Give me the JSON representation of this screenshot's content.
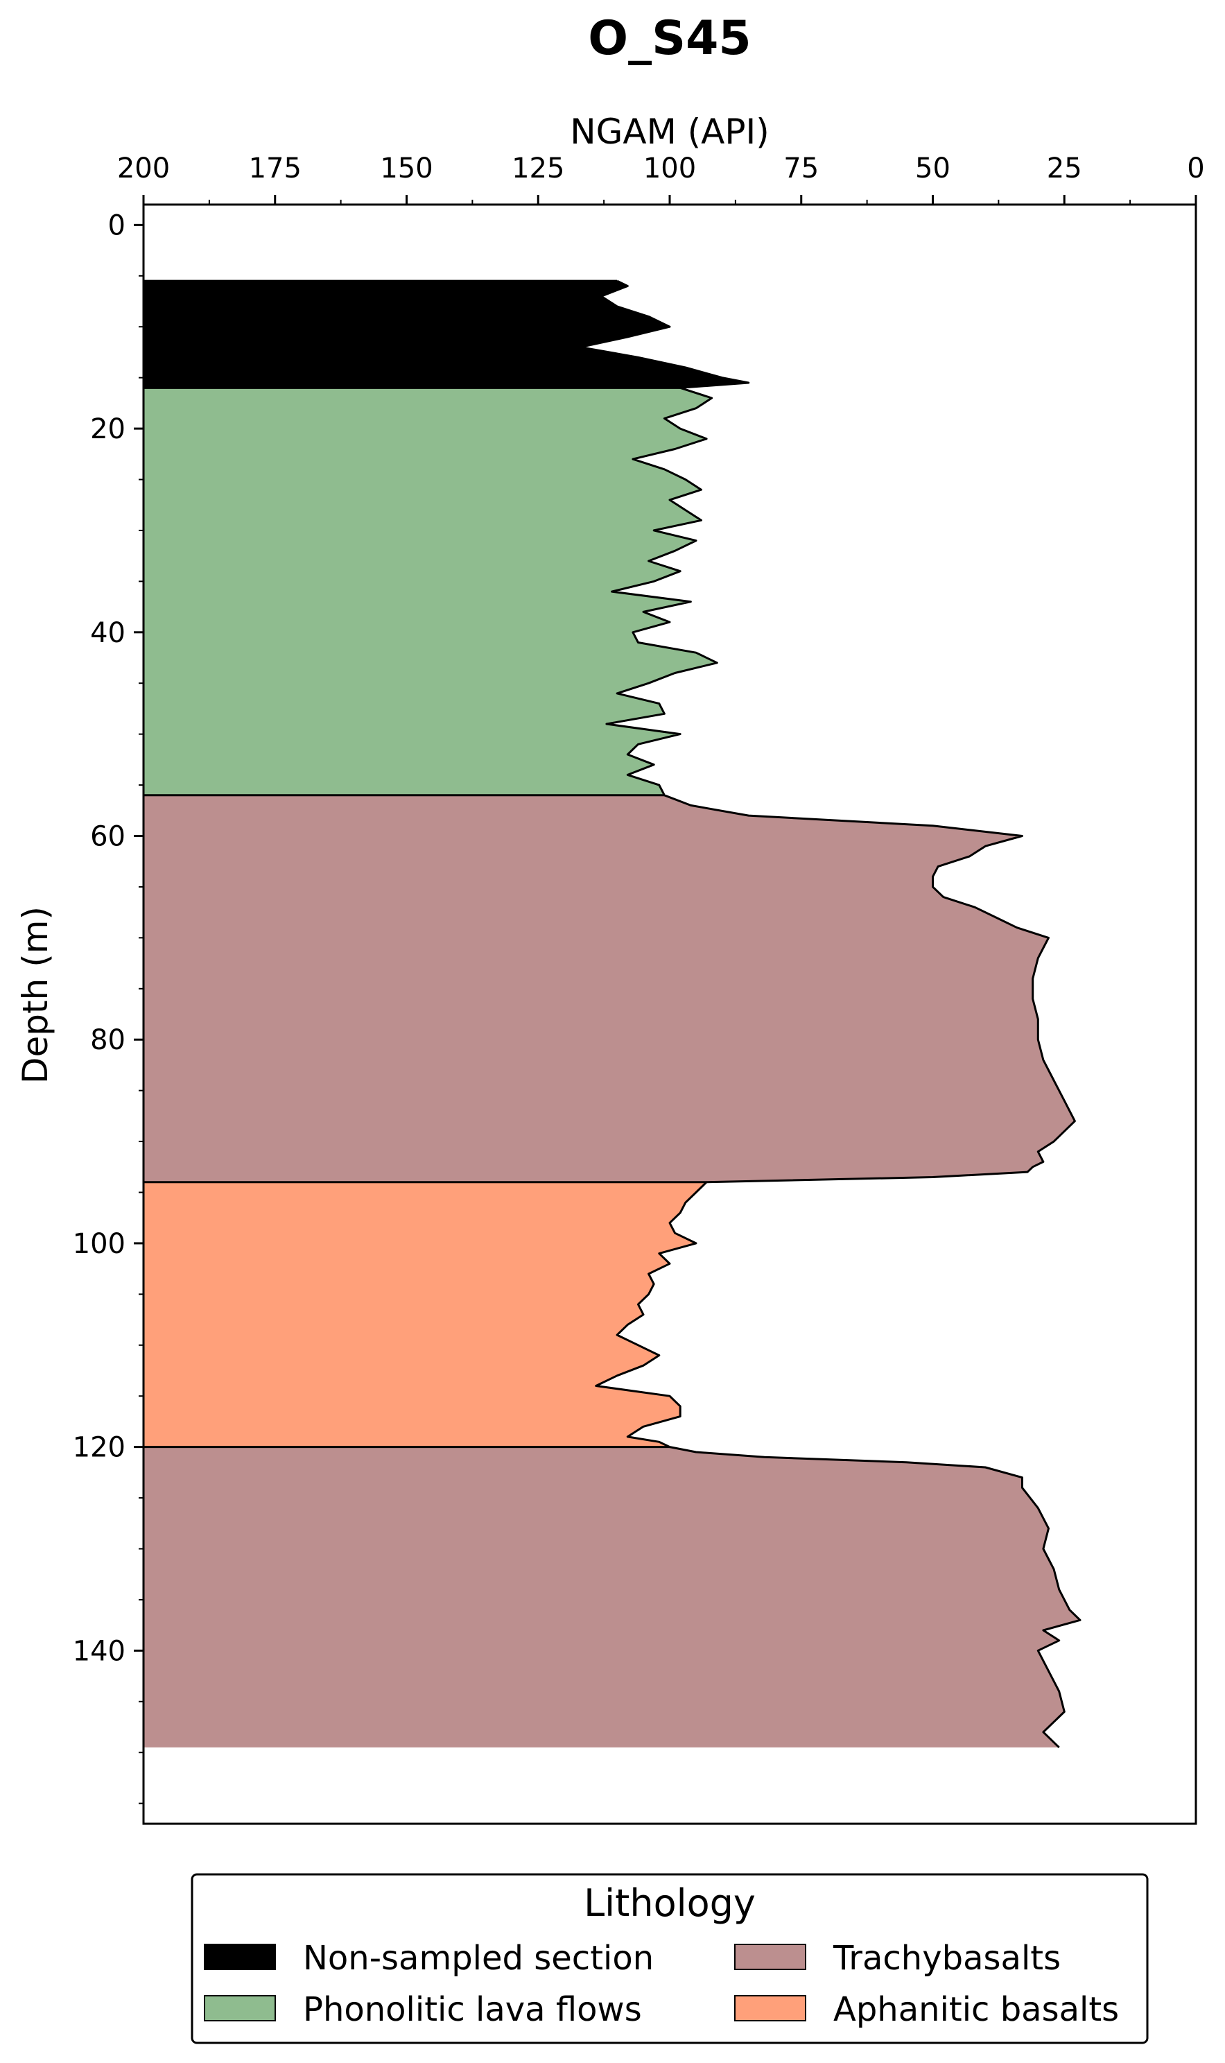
{
  "chart_data": {
    "type": "area",
    "title": "O_S45",
    "xlabel": "NGAM (API)",
    "ylabel": "Depth (m)",
    "xlim": [
      200,
      0
    ],
    "ylim": [
      157,
      -2
    ],
    "x_axis_position": "top",
    "x_ticks": [
      200,
      175,
      150,
      125,
      100,
      75,
      50,
      25,
      0
    ],
    "y_ticks": [
      0,
      20,
      40,
      60,
      80,
      100,
      120,
      140
    ],
    "y_minor_tick_step": 5,
    "x_minor_tick_step": 12.5,
    "grid": false,
    "legend": {
      "title": "Lithology",
      "placement": "bottom",
      "columns": 2,
      "entries": [
        {
          "label": "Non-sampled section",
          "color": "#000000"
        },
        {
          "label": "Phonolitic lava flows",
          "color": "#8fbc8f"
        },
        {
          "label": "Trachybasalts",
          "color": "#bc8f8f"
        },
        {
          "label": "Aphanitic basalts",
          "color": "#ffa07a"
        }
      ]
    },
    "intervals": [
      {
        "lithology": "Non-sampled section",
        "top": 5.5,
        "bottom": 16,
        "color": "#000000"
      },
      {
        "lithology": "Phonolitic lava flows",
        "top": 16,
        "bottom": 56,
        "color": "#8fbc8f"
      },
      {
        "lithology": "Trachybasalts",
        "top": 56,
        "bottom": 94,
        "color": "#bc8f8f"
      },
      {
        "lithology": "Aphanitic basalts",
        "top": 94,
        "bottom": 120,
        "color": "#ffa07a"
      },
      {
        "lithology": "Trachybasalts",
        "top": 120,
        "bottom": 149.5,
        "color": "#bc8f8f"
      }
    ],
    "series": [
      {
        "depth": [
          5.5,
          6,
          7,
          8,
          9,
          10,
          11,
          12,
          13,
          14,
          15,
          15.5,
          16,
          17,
          18,
          19,
          20,
          21,
          22,
          23,
          24,
          25,
          26,
          27,
          28,
          29,
          30,
          31,
          32,
          33,
          34,
          35,
          36,
          37,
          38,
          39,
          40,
          41,
          42,
          43,
          44,
          45,
          46,
          47,
          48,
          49,
          50,
          51,
          52,
          53,
          54,
          55,
          56,
          57,
          58,
          59,
          60,
          61,
          62,
          63,
          64,
          65,
          66,
          67,
          68,
          69,
          70,
          71,
          72,
          74,
          76,
          78,
          80,
          82,
          84,
          86,
          88,
          90,
          91,
          92,
          92.5,
          93,
          93.5,
          94,
          95,
          96,
          97,
          98,
          99,
          100,
          101,
          102,
          103,
          104,
          105,
          106,
          107,
          108,
          109,
          110,
          111,
          112,
          113,
          114,
          115,
          116,
          117,
          118,
          119,
          119.5,
          120,
          120.5,
          121,
          121.5,
          122,
          123,
          124,
          126,
          128,
          130,
          132,
          134,
          135,
          136,
          137,
          138,
          139,
          140,
          142,
          144,
          146,
          148,
          149.5
        ],
        "ngam": [
          110,
          108,
          113,
          110,
          104,
          100,
          108,
          117,
          106,
          97,
          90,
          85,
          98,
          92,
          95,
          101,
          98,
          93,
          99,
          107,
          101,
          97,
          94,
          100,
          97,
          94,
          103,
          95,
          99,
          104,
          98,
          103,
          111,
          96,
          105,
          100,
          107,
          106,
          95,
          91,
          99,
          104,
          110,
          102,
          101,
          112,
          98,
          106,
          108,
          103,
          108,
          102,
          101,
          96,
          85,
          50,
          33,
          40,
          43,
          49,
          50,
          50,
          48,
          42,
          38,
          34,
          28,
          29,
          30,
          31,
          31,
          30,
          30,
          29,
          27,
          25,
          23,
          27,
          30,
          29,
          31,
          32,
          50,
          93,
          95,
          97,
          98,
          100,
          99,
          95,
          102,
          100,
          104,
          103,
          104,
          106,
          105,
          108,
          110,
          106,
          102,
          105,
          110,
          114,
          100,
          98,
          98,
          105,
          108,
          102,
          100,
          95,
          82,
          55,
          40,
          33,
          33,
          30,
          28,
          29,
          27,
          26,
          25,
          24,
          22,
          29,
          26,
          30,
          28,
          26,
          25,
          29,
          26,
          28
        ]
      }
    ]
  }
}
